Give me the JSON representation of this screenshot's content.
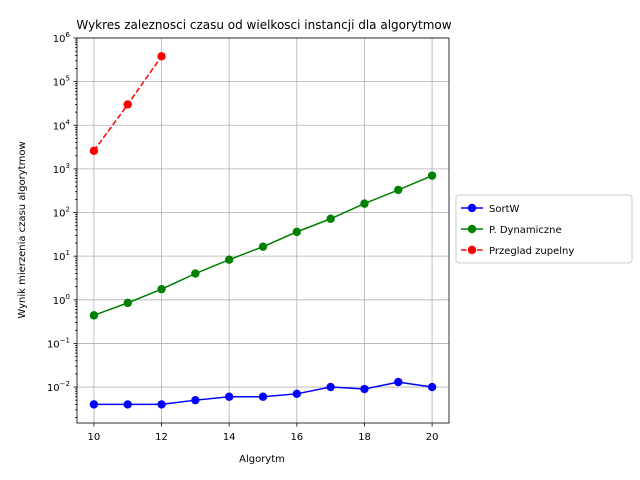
{
  "chart_data": {
    "type": "line",
    "title": "Wykres zaleznosci czasu od wielkosci instancji dla algorytmow",
    "xlabel": "Algorytm",
    "ylabel": "Wynik mierzenia czasu algorytmow",
    "xlim": [
      9.5,
      20.5
    ],
    "ylim": [
      0.0015,
      1000000
    ],
    "yscale": "log",
    "grid": true,
    "legend_position": "center-right-outside",
    "x_ticks": [
      10,
      12,
      14,
      16,
      18,
      20
    ],
    "x_tick_labels": [
      "10",
      "12",
      "14",
      "16",
      "18",
      "20"
    ],
    "y_tick_values": [
      0.01,
      0.1,
      1,
      10,
      100,
      1000,
      10000,
      100000,
      1000000
    ],
    "y_tick_exponents": [
      "−2",
      "−1",
      "0",
      "1",
      "2",
      "3",
      "4",
      "5",
      "6"
    ],
    "y_tick_base": "10",
    "series": [
      {
        "name": "SortW",
        "color": "#0000ff",
        "linestyle": "solid",
        "x": [
          10,
          11,
          12,
          13,
          14,
          15,
          16,
          17,
          18,
          19,
          20
        ],
        "y": [
          0.004,
          0.004,
          0.004,
          0.005,
          0.006,
          0.006,
          0.007,
          0.01,
          0.009,
          0.013,
          0.01
        ]
      },
      {
        "name": "P. Dynamiczne",
        "color": "#008000",
        "linestyle": "solid",
        "x": [
          10,
          11,
          12,
          13,
          14,
          15,
          16,
          17,
          18,
          19,
          20
        ],
        "y": [
          0.44,
          0.85,
          1.75,
          4.0,
          8.3,
          16.5,
          36,
          72,
          160,
          330,
          700
        ]
      },
      {
        "name": "Przeglad zupelny",
        "color": "#ff0000",
        "linestyle": "dashed",
        "x": [
          10,
          11,
          12
        ],
        "y": [
          2600,
          30000,
          380000
        ]
      }
    ]
  }
}
